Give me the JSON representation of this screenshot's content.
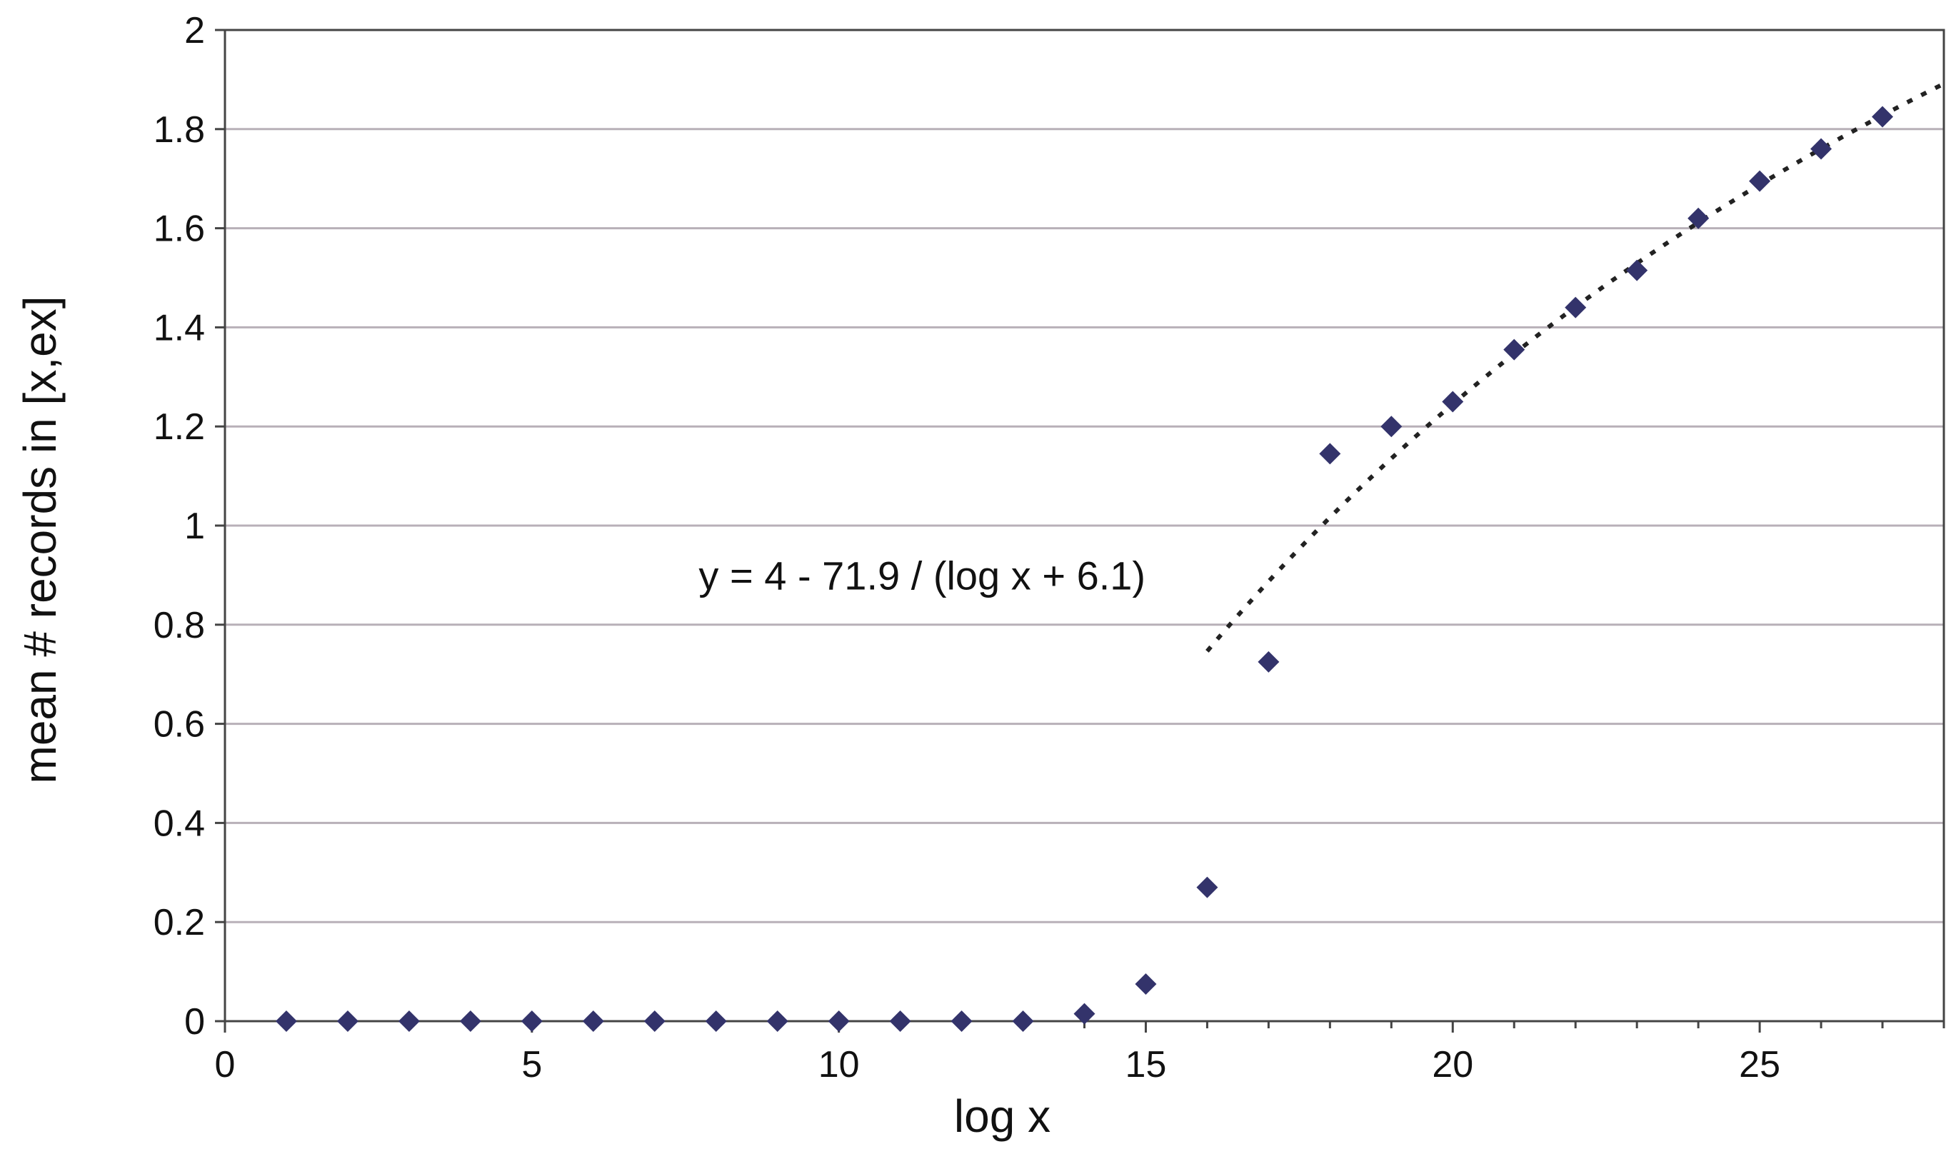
{
  "chart_data": {
    "type": "scatter",
    "title": "",
    "xlabel": "log x",
    "ylabel": "mean # records in [x,ex]",
    "xlim": [
      0,
      28
    ],
    "ylim": [
      0,
      2
    ],
    "xticks": [
      0,
      5,
      10,
      15,
      20,
      25
    ],
    "yticks": [
      0,
      0.2,
      0.4,
      0.6,
      0.8,
      1,
      1.2,
      1.4,
      1.6,
      1.8,
      2
    ],
    "ytick_labels": [
      "0",
      "0.2",
      "0.4",
      "0.6",
      "0.8",
      "1",
      "1.2",
      "1.4",
      "1.6",
      "1.8",
      "2"
    ],
    "grid": "horizontal",
    "colors": {
      "marker": "#33336b",
      "trend": "#222222",
      "grid": "#b8b0b8",
      "axis": "#444444"
    },
    "series": [
      {
        "x": [
          1,
          2,
          3,
          4,
          5,
          6,
          7,
          8,
          9,
          10,
          11,
          12,
          13,
          14,
          15,
          16,
          17,
          18,
          19,
          20,
          21,
          22,
          23,
          24,
          25,
          26,
          27
        ],
        "y": [
          0,
          0,
          0,
          0,
          0,
          0,
          0,
          0,
          0,
          0,
          0,
          0,
          0,
          0.015,
          0.075,
          0.27,
          0.725,
          1.145,
          1.2,
          1.25,
          1.355,
          1.44,
          1.515,
          1.62,
          1.695,
          1.76,
          1.825
        ]
      }
    ],
    "trendline": {
      "style": "dotted",
      "x_start": 16,
      "x_end": 28,
      "constant": 4,
      "numerator": 71.9,
      "offset": 6.1
    },
    "annotations": [
      {
        "text": "y = 4 - 71.9 / (log x + 6.1)",
        "x": 16,
        "y": 0.9
      }
    ]
  }
}
